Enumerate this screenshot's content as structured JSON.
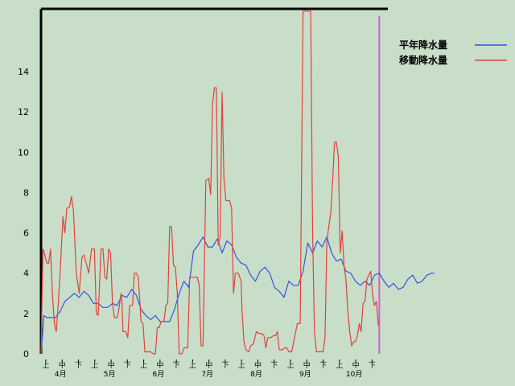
{
  "chart_data": {
    "type": "line",
    "title": "",
    "xlabel": "",
    "ylabel": "",
    "ylim": [
      0,
      17
    ],
    "yticks": [
      0,
      2,
      4,
      6,
      8,
      10,
      12,
      14
    ],
    "x_period_labels": [
      "上",
      "中",
      "下",
      "上",
      "中",
      "下",
      "上",
      "中",
      "下",
      "上",
      "中",
      "下",
      "上",
      "中",
      "下",
      "上",
      "中",
      "下",
      "上",
      "中",
      "下"
    ],
    "x_month_labels": [
      "4月",
      "5月",
      "6月",
      "7月",
      "8月",
      "9月",
      "10月"
    ],
    "legend_position": "top-right",
    "colors": {
      "background": "#c8dec8",
      "frame": "#000000",
      "normal": "#3c50e0",
      "moving": "#e0423c",
      "marker": "#d060d0"
    },
    "series": [
      {
        "name": "平年降水量",
        "color": "#3c50e0",
        "points": [
          [
            0,
            0.0
          ],
          [
            0.3,
            1.9
          ],
          [
            0.6,
            1.8
          ],
          [
            1.0,
            1.8
          ],
          [
            1.5,
            1.8
          ],
          [
            2.0,
            2.1
          ],
          [
            2.5,
            2.6
          ],
          [
            3.0,
            2.8
          ],
          [
            3.5,
            3.0
          ],
          [
            4.0,
            2.8
          ],
          [
            4.5,
            3.1
          ],
          [
            5.0,
            2.9
          ],
          [
            5.5,
            2.5
          ],
          [
            6.0,
            2.5
          ],
          [
            6.5,
            2.3
          ],
          [
            7.0,
            2.3
          ],
          [
            7.5,
            2.5
          ],
          [
            8.0,
            2.4
          ],
          [
            8.5,
            2.9
          ],
          [
            9.0,
            2.8
          ],
          [
            9.5,
            3.2
          ],
          [
            10.0,
            2.9
          ],
          [
            10.5,
            2.2
          ],
          [
            11.0,
            1.9
          ],
          [
            11.5,
            1.7
          ],
          [
            12.0,
            1.9
          ],
          [
            12.5,
            1.6
          ],
          [
            13.0,
            1.6
          ],
          [
            13.5,
            1.6
          ],
          [
            14.0,
            2.2
          ],
          [
            14.5,
            3.0
          ],
          [
            15.0,
            3.6
          ],
          [
            15.5,
            3.3
          ],
          [
            16.0,
            5.1
          ],
          [
            16.5,
            5.4
          ],
          [
            17.0,
            5.8
          ],
          [
            17.5,
            5.3
          ],
          [
            18.0,
            5.3
          ],
          [
            18.5,
            5.7
          ],
          [
            19.0,
            5.0
          ],
          [
            19.5,
            5.6
          ],
          [
            20.0,
            5.4
          ],
          [
            20.5,
            4.8
          ],
          [
            21.0,
            4.5
          ],
          [
            21.5,
            4.4
          ],
          [
            22.0,
            3.9
          ],
          [
            22.5,
            3.6
          ],
          [
            23.0,
            4.1
          ],
          [
            23.5,
            4.3
          ],
          [
            24.0,
            4.0
          ],
          [
            24.5,
            3.3
          ],
          [
            25.0,
            3.1
          ],
          [
            25.5,
            2.8
          ],
          [
            26.0,
            3.6
          ],
          [
            26.5,
            3.4
          ],
          [
            27.0,
            3.4
          ],
          [
            27.5,
            4.1
          ],
          [
            28.0,
            5.5
          ],
          [
            28.5,
            5.0
          ],
          [
            29.0,
            5.6
          ],
          [
            29.5,
            5.3
          ],
          [
            30.0,
            5.8
          ],
          [
            30.5,
            5.0
          ],
          [
            31.0,
            4.6
          ],
          [
            31.5,
            4.7
          ],
          [
            32.0,
            4.1
          ],
          [
            32.5,
            4.0
          ],
          [
            33.0,
            3.6
          ],
          [
            33.5,
            3.4
          ],
          [
            34.0,
            3.6
          ],
          [
            34.5,
            3.4
          ],
          [
            35.0,
            3.9
          ],
          [
            35.5,
            4.0
          ],
          [
            36.0,
            3.6
          ],
          [
            36.5,
            3.3
          ],
          [
            37.0,
            3.5
          ],
          [
            37.5,
            3.2
          ],
          [
            38.0,
            3.3
          ],
          [
            38.5,
            3.7
          ],
          [
            39.0,
            3.9
          ],
          [
            39.5,
            3.5
          ],
          [
            40.0,
            3.6
          ],
          [
            40.5,
            3.9
          ],
          [
            41.0,
            4.0
          ],
          [
            41.3,
            4.0
          ]
        ]
      },
      {
        "name": "移動降水量",
        "color": "#e0423c",
        "points": [
          [
            0,
            0.0
          ],
          [
            0.2,
            5.2
          ],
          [
            0.4,
            4.9
          ],
          [
            0.6,
            4.5
          ],
          [
            0.8,
            4.5
          ],
          [
            1.0,
            5.2
          ],
          [
            1.2,
            2.9
          ],
          [
            1.4,
            1.5
          ],
          [
            1.6,
            1.1
          ],
          [
            1.8,
            2.4
          ],
          [
            2.0,
            4.0
          ],
          [
            2.3,
            6.8
          ],
          [
            2.5,
            6.0
          ],
          [
            2.7,
            7.2
          ],
          [
            3.0,
            7.3
          ],
          [
            3.2,
            7.8
          ],
          [
            3.4,
            7.1
          ],
          [
            3.7,
            4.0
          ],
          [
            4.0,
            3.0
          ],
          [
            4.3,
            4.8
          ],
          [
            4.5,
            4.9
          ],
          [
            4.8,
            4.4
          ],
          [
            5.0,
            4.0
          ],
          [
            5.3,
            5.2
          ],
          [
            5.6,
            5.2
          ],
          [
            5.8,
            2.0
          ],
          [
            6.0,
            1.9
          ],
          [
            6.3,
            5.2
          ],
          [
            6.5,
            5.2
          ],
          [
            6.7,
            3.8
          ],
          [
            6.9,
            3.7
          ],
          [
            7.1,
            5.2
          ],
          [
            7.3,
            5.0
          ],
          [
            7.5,
            2.5
          ],
          [
            7.7,
            1.8
          ],
          [
            8.0,
            1.8
          ],
          [
            8.2,
            2.3
          ],
          [
            8.4,
            3.0
          ],
          [
            8.5,
            2.6
          ],
          [
            8.6,
            1.1
          ],
          [
            8.9,
            1.1
          ],
          [
            9.1,
            0.8
          ],
          [
            9.3,
            2.4
          ],
          [
            9.6,
            2.4
          ],
          [
            9.8,
            4.0
          ],
          [
            10.0,
            4.0
          ],
          [
            10.2,
            3.8
          ],
          [
            10.5,
            1.6
          ],
          [
            10.7,
            1.5
          ],
          [
            10.9,
            0.1
          ],
          [
            11.2,
            0.1
          ],
          [
            11.5,
            0.1
          ],
          [
            11.8,
            0.0
          ],
          [
            12.0,
            0.0
          ],
          [
            12.2,
            1.3
          ],
          [
            12.4,
            1.3
          ],
          [
            12.6,
            1.6
          ],
          [
            12.9,
            1.6
          ],
          [
            13.1,
            2.4
          ],
          [
            13.3,
            2.5
          ],
          [
            13.5,
            6.3
          ],
          [
            13.7,
            6.3
          ],
          [
            13.9,
            4.4
          ],
          [
            14.1,
            4.3
          ],
          [
            14.3,
            3.0
          ],
          [
            14.5,
            0.0
          ],
          [
            14.8,
            0.0
          ],
          [
            15.0,
            0.3
          ],
          [
            15.2,
            0.3
          ],
          [
            15.4,
            0.3
          ],
          [
            15.6,
            3.8
          ],
          [
            15.9,
            3.8
          ],
          [
            16.2,
            3.8
          ],
          [
            16.4,
            3.8
          ],
          [
            16.6,
            3.4
          ],
          [
            16.8,
            0.4
          ],
          [
            17.0,
            0.4
          ],
          [
            17.3,
            8.6
          ],
          [
            17.6,
            8.7
          ],
          [
            17.8,
            7.9
          ],
          [
            18.0,
            12.4
          ],
          [
            18.2,
            13.2
          ],
          [
            18.4,
            13.2
          ],
          [
            18.6,
            5.4
          ],
          [
            18.8,
            5.8
          ],
          [
            19.0,
            13.0
          ],
          [
            19.2,
            8.7
          ],
          [
            19.4,
            7.6
          ],
          [
            19.6,
            7.6
          ],
          [
            19.8,
            7.6
          ],
          [
            20.0,
            7.2
          ],
          [
            20.2,
            3.0
          ],
          [
            20.4,
            4.0
          ],
          [
            20.7,
            4.0
          ],
          [
            21.0,
            3.6
          ],
          [
            21.1,
            2.1
          ],
          [
            21.3,
            0.6
          ],
          [
            21.5,
            0.2
          ],
          [
            21.8,
            0.1
          ],
          [
            22.0,
            0.4
          ],
          [
            22.3,
            0.5
          ],
          [
            22.6,
            1.1
          ],
          [
            22.9,
            1.0
          ],
          [
            23.2,
            1.0
          ],
          [
            23.4,
            0.9
          ],
          [
            23.6,
            0.3
          ],
          [
            23.8,
            0.8
          ],
          [
            24.1,
            0.8
          ],
          [
            24.4,
            0.9
          ],
          [
            24.6,
            0.9
          ],
          [
            24.8,
            1.1
          ],
          [
            25.0,
            0.2
          ],
          [
            25.3,
            0.2
          ],
          [
            25.6,
            0.3
          ],
          [
            25.8,
            0.3
          ],
          [
            26.0,
            0.1
          ],
          [
            26.3,
            0.1
          ],
          [
            26.6,
            0.8
          ],
          [
            26.9,
            1.5
          ],
          [
            27.2,
            1.5
          ],
          [
            27.5,
            17.0
          ],
          [
            28.0,
            17.0
          ],
          [
            28.3,
            17.0
          ],
          [
            28.5,
            6.0
          ],
          [
            28.7,
            1.1
          ],
          [
            28.9,
            0.1
          ],
          [
            29.1,
            0.1
          ],
          [
            29.3,
            0.1
          ],
          [
            29.6,
            0.1
          ],
          [
            29.8,
            0.8
          ],
          [
            30.0,
            5.6
          ],
          [
            30.2,
            6.3
          ],
          [
            30.4,
            7.0
          ],
          [
            30.6,
            8.5
          ],
          [
            30.8,
            10.5
          ],
          [
            31.0,
            10.5
          ],
          [
            31.2,
            9.8
          ],
          [
            31.4,
            5.0
          ],
          [
            31.6,
            6.1
          ],
          [
            31.8,
            4.4
          ],
          [
            32.0,
            3.7
          ],
          [
            32.2,
            2.1
          ],
          [
            32.4,
            1.1
          ],
          [
            32.6,
            0.4
          ],
          [
            32.8,
            0.6
          ],
          [
            33.0,
            0.6
          ],
          [
            33.2,
            0.9
          ],
          [
            33.4,
            1.5
          ],
          [
            33.6,
            1.1
          ],
          [
            33.8,
            2.5
          ],
          [
            34.0,
            2.6
          ],
          [
            34.2,
            3.7
          ],
          [
            34.4,
            3.9
          ],
          [
            34.6,
            4.1
          ],
          [
            34.8,
            2.9
          ],
          [
            35.0,
            2.4
          ],
          [
            35.2,
            2.6
          ],
          [
            35.4,
            1.4
          ]
        ]
      }
    ],
    "vertical_marker": {
      "x": 35.5,
      "color": "#d060d0"
    }
  }
}
